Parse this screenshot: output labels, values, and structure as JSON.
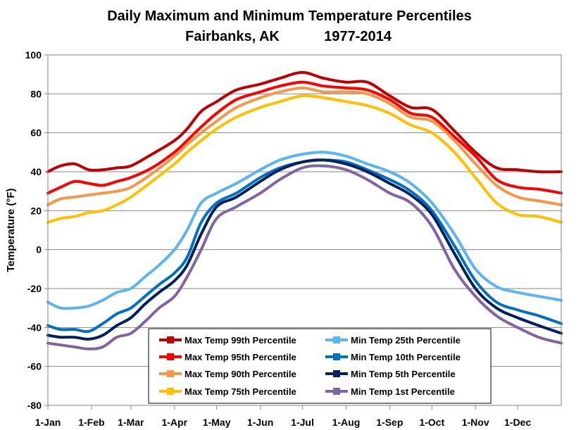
{
  "chart_data": {
    "type": "line",
    "title": "Daily Maximum and Minimum Temperature Percentiles",
    "subtitle_location": "Fairbanks, AK",
    "subtitle_years": "1977-2014",
    "xlabel": "",
    "ylabel": "Temperature (°F)",
    "ylim": [
      -80,
      100
    ],
    "yticks": [
      100,
      80,
      60,
      40,
      20,
      0,
      -20,
      -40,
      -60,
      -80
    ],
    "xlim": [
      1,
      366
    ],
    "x_tick_days": [
      1,
      32,
      60,
      91,
      121,
      152,
      182,
      213,
      244,
      274,
      305,
      335
    ],
    "x_tick_labels": [
      "1-Jan",
      "1-Feb",
      "1-Mar",
      "1-Apr",
      "1-May",
      "1-Jun",
      "1-Jul",
      "1-Aug",
      "1-Sep",
      "1-Oct",
      "1-Nov",
      "1-Dec"
    ],
    "gridlines": "horizontal",
    "legend_position": "bottom-center",
    "series": [
      {
        "name": "Max Temp 99th Percentile",
        "color": "#C00000",
        "x": [
          1,
          10,
          20,
          30,
          40,
          50,
          60,
          75,
          91,
          100,
          110,
          121,
          135,
          152,
          166,
          182,
          197,
          213,
          228,
          244,
          259,
          274,
          290,
          305,
          320,
          335,
          350,
          366
        ],
        "values": [
          40,
          43,
          44,
          41,
          41,
          42,
          43,
          49,
          56,
          62,
          71,
          76,
          82,
          85,
          88,
          91,
          88,
          86,
          86,
          79,
          73,
          72,
          61,
          50,
          42,
          41,
          40,
          40
        ]
      },
      {
        "name": "Max Temp 95th Percentile",
        "color": "#FF0000",
        "x": [
          1,
          10,
          20,
          30,
          40,
          50,
          60,
          75,
          91,
          100,
          110,
          121,
          135,
          152,
          166,
          182,
          197,
          213,
          228,
          244,
          259,
          274,
          290,
          305,
          320,
          335,
          350,
          366
        ],
        "values": [
          29,
          32,
          35,
          34,
          33,
          35,
          37,
          42,
          50,
          56,
          63,
          70,
          77,
          81,
          84,
          86,
          84,
          83,
          82,
          77,
          70,
          68,
          58,
          48,
          36,
          32,
          31,
          29
        ]
      },
      {
        "name": "Max Temp 90th Percentile",
        "color": "#F79646",
        "x": [
          1,
          10,
          20,
          30,
          40,
          50,
          60,
          75,
          91,
          100,
          110,
          121,
          135,
          152,
          166,
          182,
          197,
          213,
          228,
          244,
          259,
          274,
          290,
          305,
          320,
          335,
          350,
          366
        ],
        "values": [
          23,
          26,
          27,
          28,
          29,
          30,
          32,
          39,
          48,
          54,
          60,
          66,
          73,
          78,
          81,
          83,
          81,
          81,
          80,
          75,
          68,
          66,
          56,
          44,
          33,
          27,
          25,
          23
        ]
      },
      {
        "name": "Max Temp 75th Percentile",
        "color": "#FFC000",
        "x": [
          1,
          10,
          20,
          30,
          40,
          50,
          60,
          75,
          91,
          100,
          110,
          121,
          135,
          152,
          166,
          182,
          197,
          213,
          228,
          244,
          259,
          274,
          290,
          305,
          320,
          335,
          350,
          366
        ],
        "values": [
          14,
          16,
          17,
          19,
          20,
          23,
          27,
          35,
          44,
          50,
          56,
          62,
          68,
          73,
          76,
          79,
          78,
          76,
          74,
          70,
          64,
          60,
          50,
          37,
          24,
          18,
          17,
          14
        ]
      },
      {
        "name": "Min Temp 25th Percentile",
        "color": "#5BB5F0",
        "x": [
          1,
          10,
          20,
          30,
          40,
          50,
          60,
          70,
          80,
          91,
          100,
          110,
          121,
          135,
          152,
          166,
          182,
          197,
          213,
          228,
          244,
          259,
          274,
          290,
          305,
          320,
          335,
          350,
          366
        ],
        "values": [
          -27,
          -30,
          -30,
          -29,
          -26,
          -22,
          -20,
          -14,
          -8,
          0,
          10,
          24,
          29,
          34,
          41,
          46,
          49,
          50,
          48,
          44,
          40,
          34,
          24,
          8,
          -10,
          -19,
          -22,
          -24,
          -26
        ]
      },
      {
        "name": "Min Temp 10th Percentile",
        "color": "#0070C0",
        "x": [
          1,
          10,
          20,
          30,
          40,
          50,
          60,
          70,
          80,
          91,
          100,
          110,
          121,
          135,
          152,
          166,
          182,
          197,
          213,
          228,
          244,
          259,
          274,
          290,
          305,
          320,
          335,
          350,
          366
        ],
        "values": [
          -39,
          -41,
          -41,
          -42,
          -38,
          -33,
          -30,
          -24,
          -18,
          -12,
          -4,
          14,
          24,
          29,
          37,
          42,
          45,
          46,
          45,
          41,
          36,
          30,
          20,
          2,
          -16,
          -27,
          -31,
          -34,
          -38
        ]
      },
      {
        "name": "Min Temp 5th Percentile",
        "color": "#002060",
        "x": [
          1,
          10,
          20,
          30,
          40,
          50,
          60,
          70,
          80,
          91,
          100,
          110,
          121,
          135,
          152,
          166,
          182,
          197,
          213,
          228,
          244,
          259,
          274,
          290,
          305,
          320,
          335,
          350,
          366
        ],
        "values": [
          -44,
          -45,
          -45,
          -46,
          -44,
          -39,
          -35,
          -28,
          -22,
          -16,
          -8,
          8,
          22,
          27,
          35,
          41,
          45,
          46,
          44,
          40,
          34,
          28,
          18,
          -2,
          -20,
          -30,
          -35,
          -39,
          -43
        ]
      },
      {
        "name": "Min Temp 1st Percentile",
        "color": "#8064A2",
        "x": [
          1,
          10,
          20,
          30,
          40,
          50,
          60,
          70,
          80,
          91,
          100,
          110,
          121,
          135,
          152,
          166,
          182,
          197,
          213,
          228,
          244,
          259,
          274,
          290,
          305,
          320,
          335,
          350,
          366
        ],
        "values": [
          -48,
          -49,
          -50,
          -51,
          -50,
          -45,
          -43,
          -37,
          -30,
          -24,
          -14,
          0,
          16,
          22,
          29,
          36,
          42,
          43,
          41,
          36,
          29,
          24,
          12,
          -10,
          -24,
          -34,
          -40,
          -45,
          -48
        ]
      }
    ]
  }
}
